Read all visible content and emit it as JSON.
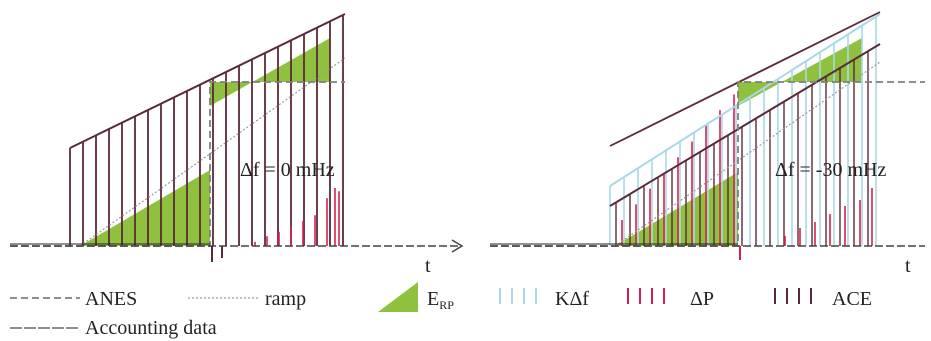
{
  "left_panel": {
    "delta_f_label": "Δf =  0 mHz",
    "axis_label": "t"
  },
  "right_panel": {
    "delta_f_label": "Δf =  -30 mHz",
    "axis_label": "t"
  },
  "legend": {
    "anes": "ANES",
    "ramp": "ramp",
    "erp_main": "E",
    "erp_sub": "RP",
    "k_delta_f": "KΔf",
    "delta_p": "ΔP",
    "ace": "ACE",
    "accounting": "Accounting data"
  },
  "colors": {
    "area_fill": "#8fc13e",
    "ace": "#5a2a3a",
    "delta_p": "#d6224a",
    "k_delta_f": "#a9d8ea",
    "anes": "#7f7f7f",
    "ramp": "#9a9a9a",
    "accounting": "#222222",
    "axis": "#444444"
  }
}
